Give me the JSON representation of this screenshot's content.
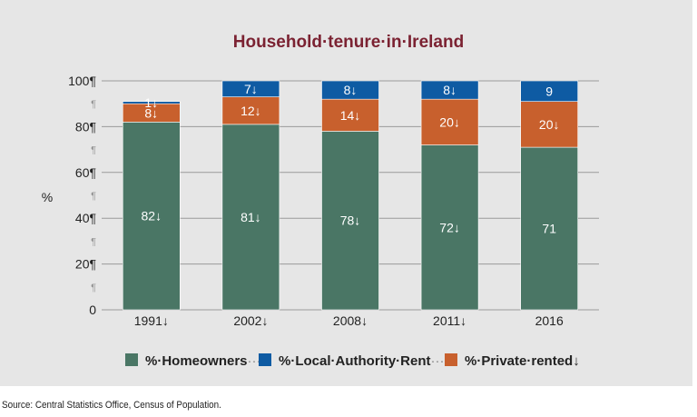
{
  "chart_data": {
    "type": "bar",
    "stacked": true,
    "title": "Household·tenure·in·Ireland",
    "ylabel": "%",
    "ylim": [
      0,
      100
    ],
    "yticks": [
      {
        "label": "0"
      },
      {
        "label": "20¶"
      },
      {
        "label": "40¶"
      },
      {
        "label": "60¶"
      },
      {
        "label": "80¶"
      },
      {
        "label": "100¶"
      }
    ],
    "categories": [
      "1991",
      "2002",
      "2008",
      "2011",
      "2016"
    ],
    "category_labels": [
      "1991↓",
      "2002↓",
      "2008↓",
      "2011↓",
      "2016"
    ],
    "series": [
      {
        "name": "%·Homeowners",
        "color": "#4a7665",
        "values": [
          82,
          81,
          78,
          72,
          71
        ],
        "labels": [
          "82↓",
          "81↓",
          "78↓",
          "72↓",
          "71"
        ]
      },
      {
        "name": "%·Private·rented",
        "color": "#c8602d",
        "values": [
          8,
          12,
          14,
          20,
          20
        ],
        "labels": [
          "8↓",
          "12↓",
          "14↓",
          "20↓",
          "20↓"
        ]
      },
      {
        "name": "%·Local·Authority·Rent",
        "color": "#0e5ba3",
        "values": [
          1,
          7,
          8,
          8,
          9
        ],
        "labels": [
          "1↓",
          "7↓",
          "8↓",
          "8↓",
          "9"
        ]
      }
    ],
    "legend": {
      "position": "bottom",
      "entries": [
        {
          "name": "%·Homeowners",
          "color": "#4a7665",
          "suffix": "···"
        },
        {
          "name": "%·Local·Authority·Rent",
          "color": "#0e5ba3",
          "suffix": "····"
        },
        {
          "name": "%·Private·rented↓",
          "color": "#c8602d",
          "suffix": ""
        }
      ]
    },
    "grid": true,
    "background": "#e6e6e6"
  },
  "source_note": "Source: Central Statistics Office, Census of Population."
}
